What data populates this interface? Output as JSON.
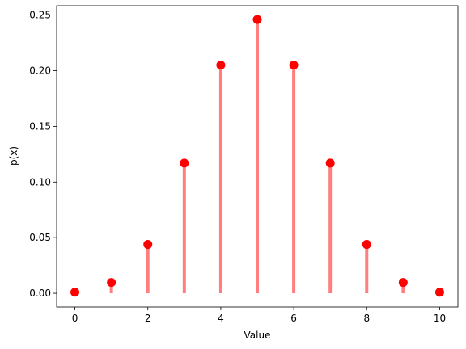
{
  "chart_data": {
    "type": "stem",
    "x": [
      0,
      1,
      2,
      3,
      4,
      5,
      6,
      7,
      8,
      9,
      10
    ],
    "values": [
      0.000977,
      0.00977,
      0.0439,
      0.117,
      0.205,
      0.246,
      0.205,
      0.117,
      0.0439,
      0.00977,
      0.000977
    ],
    "stem_color": "#ff7f7f",
    "marker_color": "#ff0000",
    "xlabel": "Value",
    "ylabel": "p(x)",
    "xlim": [
      -0.5,
      10.5
    ],
    "xticks": [
      0,
      2,
      4,
      6,
      8,
      10
    ],
    "ylim": [
      -0.0123,
      0.2584
    ],
    "yticks": [
      {
        "value": 0,
        "label": "0.00"
      },
      {
        "value": 0.05,
        "label": "0.05"
      },
      {
        "value": 0.1,
        "label": "0.10"
      },
      {
        "value": 0.15,
        "label": "0.15"
      },
      {
        "value": 0.2,
        "label": "0.20"
      },
      {
        "value": 0.25,
        "label": "0.25"
      }
    ]
  }
}
